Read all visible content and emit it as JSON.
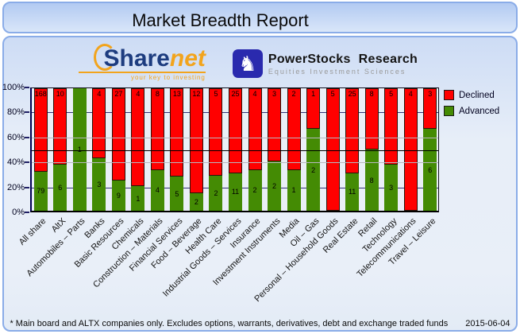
{
  "page": {
    "title": "Market Breadth Report"
  },
  "logos": {
    "sharenet": {
      "word_main": "Share",
      "word_accent": "net",
      "tagline": "your key to investing"
    },
    "powerstocks": {
      "name_word1": "PowerStocks",
      "name_word2": "Research",
      "subtitle": "Equities Investment Sciences",
      "icon": "chess-knight-icon",
      "square_color": "#2a2aae"
    }
  },
  "chart_data": {
    "type": "bar",
    "variant": "100-percent-stacked-column",
    "title": "",
    "categories": [
      "All share",
      "AltX",
      "Automobiles – Parts",
      "Banks",
      "Basic Resources",
      "Chemicals",
      "Construction – Materials",
      "Financial Services",
      "Food – Beverage",
      "Health Care",
      "Industrial Goods – Services",
      "Insurance",
      "Investment Instruments",
      "Media",
      "Oil – Gas",
      "Personal – Household Goods",
      "Real Estate",
      "Retail",
      "Technology",
      "Telecommunications",
      "Travel – Leisure"
    ],
    "series": [
      {
        "name": "Declined",
        "color": "#ff0000",
        "values": [
          168,
          10,
          0,
          4,
          27,
          4,
          8,
          13,
          12,
          5,
          25,
          4,
          3,
          2,
          1,
          5,
          25,
          8,
          5,
          4,
          3
        ]
      },
      {
        "name": "Advanced",
        "color": "#448b04",
        "values": [
          79,
          6,
          1,
          3,
          9,
          1,
          4,
          5,
          2,
          2,
          11,
          2,
          2,
          1,
          2,
          0,
          11,
          8,
          3,
          0,
          6
        ]
      }
    ],
    "y_ticks": [
      "100%",
      "80%",
      "60%",
      "40%",
      "20%",
      "0%"
    ],
    "ylim": [
      0,
      100
    ],
    "grid": true,
    "reference_line_pct": 50,
    "legend_position": "top-right"
  },
  "footer": {
    "note": "* Main board and ALTX companies only. Excludes options, warrants, derivatives, debt and exchange traded funds",
    "date": "2015-06-04"
  }
}
